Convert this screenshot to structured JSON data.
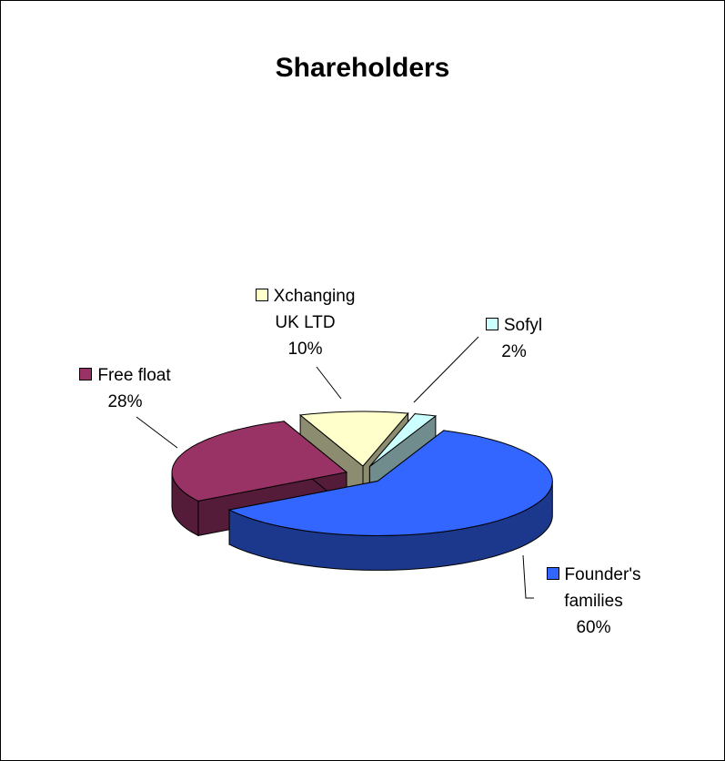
{
  "chart_data": {
    "type": "pie",
    "title": "Shareholders",
    "categories": [
      "Sofyl",
      "Founder's families",
      "Free float",
      "Xchanging UK LTD"
    ],
    "values": [
      2,
      60,
      28,
      10
    ],
    "value_labels": [
      "2%",
      "60%",
      "28%",
      "10%"
    ],
    "colors": [
      "#ccffff",
      "#3366ff",
      "#993366",
      "#ffffcc"
    ]
  }
}
